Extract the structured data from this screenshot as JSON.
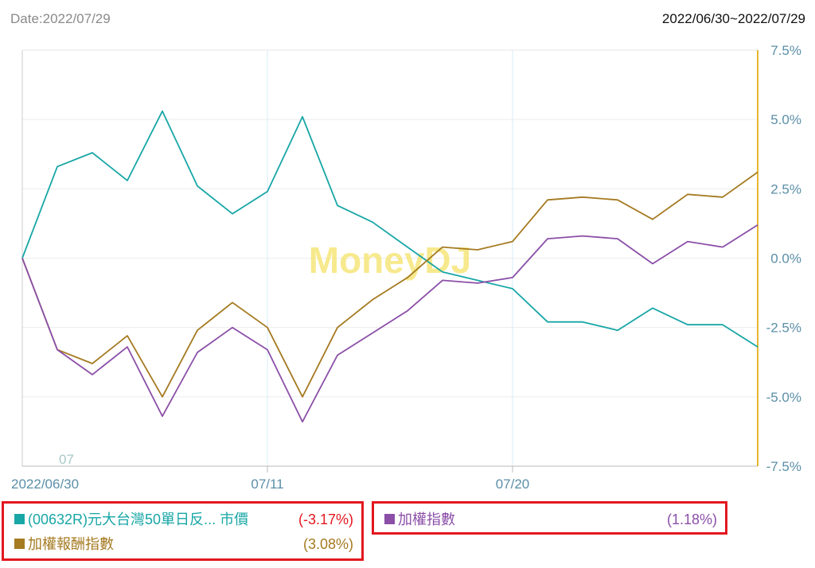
{
  "header": {
    "date": "Date:2022/07/29",
    "range": "2022/06/30~2022/07/29"
  },
  "watermark": "MoneyDJ",
  "colors": {
    "etf": "#18a6a6",
    "return_index": "#a57a21",
    "weighted_index": "#8b4fa8",
    "axis_right": "#e8b630",
    "loss": "#e3171f",
    "legend_border": "#e3171f"
  },
  "legend": {
    "etf": {
      "name": "(00632R)元大台灣50單日反... 市價",
      "value": "(-3.17%)"
    },
    "return_index": {
      "name": "加權報酬指數",
      "value": "(3.08%)"
    },
    "weighted_index": {
      "name": "加權指數",
      "value": "(1.18%)"
    }
  },
  "chart_data": {
    "type": "line",
    "x_tick_labels": [
      "2022/06/30",
      "07/11",
      "07/20"
    ],
    "x_tick_index": [
      0,
      7,
      14
    ],
    "inner_label": "07",
    "y_tick_labels": [
      "7.5%",
      "5.0%",
      "2.5%",
      "0.0%",
      "-2.5%",
      "-5.0%",
      "-7.5%"
    ],
    "ylim": [
      -7.5,
      7.5
    ],
    "y_axis_side": "right",
    "grid": true,
    "series": [
      {
        "name": "(00632R)元大台灣50單日反... 市價",
        "color": "#18a6a6",
        "values": [
          0.0,
          3.3,
          3.8,
          2.8,
          5.3,
          2.6,
          1.6,
          2.4,
          5.1,
          1.9,
          1.3,
          0.4,
          -0.5,
          -0.8,
          -1.1,
          -2.3,
          -2.3,
          -2.6,
          -1.8,
          -2.4,
          -2.4,
          -3.2
        ]
      },
      {
        "name": "加權報酬指數",
        "color": "#a57a21",
        "values": [
          0.0,
          -3.3,
          -3.8,
          -2.8,
          -5.0,
          -2.6,
          -1.6,
          -2.5,
          -5.0,
          -2.5,
          -1.5,
          -0.7,
          0.4,
          0.3,
          0.6,
          2.1,
          2.2,
          2.1,
          1.4,
          2.3,
          2.2,
          3.1
        ]
      },
      {
        "name": "加權指數",
        "color": "#8b4fa8",
        "values": [
          0.0,
          -3.3,
          -4.2,
          -3.2,
          -5.7,
          -3.4,
          -2.5,
          -3.3,
          -5.9,
          -3.5,
          -2.7,
          -1.9,
          -0.8,
          -0.9,
          -0.7,
          0.7,
          0.8,
          0.7,
          -0.2,
          0.6,
          0.4,
          1.2
        ]
      }
    ]
  }
}
